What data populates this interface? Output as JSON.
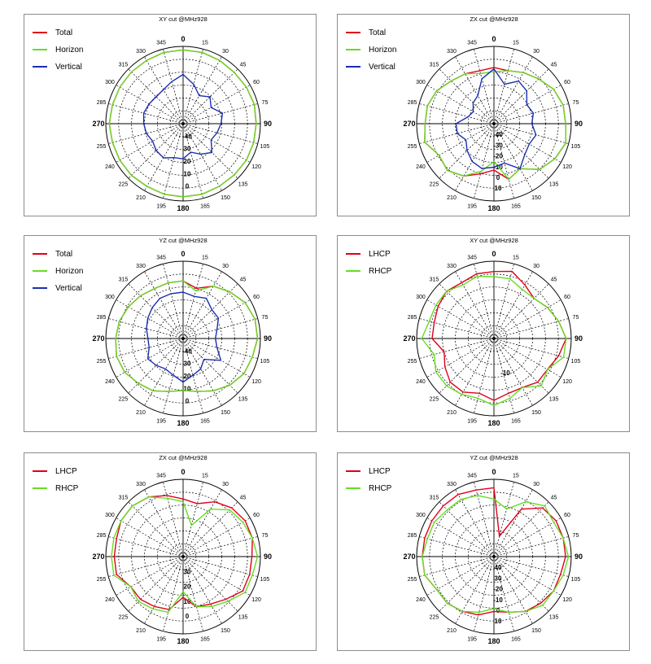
{
  "chart_data": [
    {
      "type": "polar-line",
      "title": "XY cut @MHz928",
      "angles": [
        0,
        15,
        30,
        45,
        60,
        75,
        90,
        105,
        120,
        135,
        150,
        165,
        180,
        195,
        210,
        225,
        240,
        255,
        270,
        285,
        300,
        315,
        330,
        345
      ],
      "radial_labels": [
        "0",
        "10",
        "20",
        "30",
        "-40"
      ],
      "radial_label_angle": 180,
      "rlim": [
        -45,
        10
      ],
      "legend": "top-left",
      "series": [
        {
          "name": "Total",
          "color": "#e0001b",
          "r": [
            7.5,
            7.5,
            7,
            6.5,
            7,
            7.5,
            7,
            7,
            7,
            6.5,
            6.5,
            7,
            7,
            7,
            6.5,
            7,
            7,
            7,
            7.5,
            7,
            7,
            7,
            7,
            7.5
          ]
        },
        {
          "name": "Horizon",
          "color": "#66dd22",
          "r": [
            7.5,
            7.5,
            7,
            6.5,
            7,
            7.5,
            7,
            7,
            7,
            6.5,
            6.5,
            7,
            7,
            7,
            6.5,
            7,
            7,
            7,
            7.5,
            7,
            7,
            7,
            7,
            7.5
          ]
        },
        {
          "name": "Vertical",
          "color": "#1a2fb0",
          "r": [
            -10,
            -16,
            -22,
            -18,
            -22,
            -16,
            -18,
            -20,
            -22,
            -16,
            -20,
            -24,
            -20,
            -20,
            -17,
            -18,
            -20,
            -18,
            -17,
            -16,
            -17,
            -18,
            -17,
            -14
          ]
        }
      ]
    },
    {
      "type": "polar-line",
      "title": "ZX cut @MHz928",
      "angles": [
        0,
        15,
        30,
        45,
        60,
        75,
        90,
        105,
        120,
        135,
        150,
        165,
        180,
        195,
        210,
        225,
        240,
        255,
        270,
        285,
        300,
        315,
        330,
        345
      ],
      "radial_labels": [
        "10",
        "0",
        "-10",
        "-20",
        "-30",
        "-40"
      ],
      "radial_label_angle": 180,
      "rlim": [
        -45,
        10
      ],
      "legend": "top-left",
      "series": [
        {
          "name": "Total",
          "color": "#e0001b",
          "r": [
            -5,
            -6,
            -3,
            0,
            4,
            6,
            6,
            8,
            5,
            1,
            -8,
            -4,
            -12,
            -8,
            -2,
            2,
            0,
            6,
            4,
            4,
            2,
            -2,
            -4,
            -6
          ]
        },
        {
          "name": "Horizon",
          "color": "#66dd22",
          "r": [
            -8,
            -6,
            -3,
            0,
            4,
            6,
            6,
            8,
            5,
            1,
            -8,
            -4,
            -18,
            -10,
            -2,
            2,
            0,
            6,
            4,
            4,
            2,
            -2,
            -4,
            -8
          ]
        },
        {
          "name": "Vertical",
          "color": "#1a2fb0",
          "r": [
            -6,
            -16,
            -10,
            -12,
            -18,
            -16,
            -18,
            -14,
            -16,
            -14,
            -8,
            -16,
            -14,
            -12,
            -14,
            -18,
            -22,
            -18,
            -18,
            -26,
            -28,
            -24,
            -22,
            -12
          ]
        }
      ]
    },
    {
      "type": "polar-line",
      "title": "YZ cut @MHz928",
      "angles": [
        0,
        15,
        30,
        45,
        60,
        75,
        90,
        105,
        120,
        135,
        150,
        165,
        180,
        195,
        210,
        225,
        240,
        255,
        270,
        285,
        300,
        315,
        330,
        345
      ],
      "radial_labels": [
        "0",
        "10",
        "20",
        "30",
        "-40"
      ],
      "radial_label_angle": 180,
      "rlim": [
        -45,
        10
      ],
      "legend": "top-left",
      "series": [
        {
          "name": "Total",
          "color": "#e0001b",
          "r": [
            -4,
            -8,
            -2,
            2,
            6,
            8,
            8,
            6,
            5,
            2,
            -2,
            -6,
            -8,
            -6,
            -2,
            0,
            3,
            4,
            3,
            2,
            0,
            -2,
            -4,
            -4
          ]
        },
        {
          "name": "Horizon",
          "color": "#66dd22",
          "r": [
            -4,
            -10,
            -2,
            2,
            6,
            8,
            8,
            6,
            5,
            2,
            -2,
            -6,
            -8,
            -6,
            -2,
            0,
            3,
            4,
            3,
            2,
            0,
            -2,
            -4,
            -4
          ]
        },
        {
          "name": "Vertical",
          "color": "#1a2fb0",
          "r": [
            -12,
            -14,
            -12,
            -16,
            -16,
            -20,
            -22,
            -20,
            -14,
            -24,
            -20,
            -18,
            -14,
            -18,
            -20,
            -18,
            -16,
            -20,
            -20,
            -18,
            -16,
            -14,
            -12,
            -12
          ]
        }
      ]
    },
    {
      "type": "polar-line",
      "title": "XY cut @MHz928",
      "angles": [
        0,
        15,
        30,
        45,
        60,
        75,
        90,
        105,
        120,
        135,
        150,
        165,
        180,
        195,
        210,
        225,
        240,
        255,
        270,
        285,
        300,
        315,
        330,
        345
      ],
      "radial_labels": [
        "-10"
      ],
      "radial_label_angle": 168,
      "rlim": [
        -20,
        10
      ],
      "legend": "top-left",
      "series": [
        {
          "name": "LHCP",
          "color": "#e0001b",
          "r": [
            6,
            7,
            4,
            2,
            4,
            6,
            8,
            6,
            4,
            4,
            2,
            2,
            4,
            2,
            4,
            4,
            2,
            0,
            4,
            4,
            5,
            6,
            5,
            6
          ]
        },
        {
          "name": "RHCP",
          "color": "#66dd22",
          "r": [
            4,
            4,
            2,
            2,
            4,
            6,
            8,
            8,
            4,
            6,
            2,
            4,
            6,
            4,
            5,
            6,
            6,
            4,
            8,
            6,
            6,
            6,
            4,
            5
          ]
        }
      ]
    },
    {
      "type": "polar-line",
      "title": "ZX cut @MHz928",
      "angles": [
        0,
        15,
        30,
        45,
        60,
        75,
        90,
        105,
        120,
        135,
        150,
        165,
        180,
        195,
        210,
        225,
        240,
        255,
        270,
        285,
        300,
        315,
        330,
        345
      ],
      "radial_labels": [
        "0",
        "10",
        "20",
        "30"
      ],
      "radial_label_angle": 180,
      "rlim": [
        -45,
        10
      ],
      "legend": "top-left",
      "series": [
        {
          "name": "LHCP",
          "color": "#e0001b",
          "r": [
            -4,
            -6,
            0,
            4,
            6,
            6,
            4,
            4,
            4,
            -2,
            -6,
            -8,
            -16,
            -6,
            -4,
            -2,
            -2,
            4,
            4,
            4,
            6,
            6,
            4,
            0
          ]
        },
        {
          "name": "RHCP",
          "color": "#66dd22",
          "r": [
            -6,
            -22,
            -6,
            2,
            4,
            6,
            8,
            6,
            6,
            0,
            -4,
            -8,
            -20,
            -4,
            -2,
            0,
            -2,
            6,
            6,
            6,
            6,
            6,
            4,
            -2
          ]
        }
      ]
    },
    {
      "type": "polar-line",
      "title": "YZ cut @MHz928",
      "angles": [
        0,
        15,
        30,
        45,
        60,
        75,
        90,
        105,
        120,
        135,
        150,
        165,
        180,
        195,
        210,
        225,
        240,
        255,
        270,
        285,
        300,
        315,
        330,
        345
      ],
      "radial_labels": [
        "10",
        "0",
        "-10",
        "-20",
        "30",
        "40"
      ],
      "radial_label_angle": 180,
      "rlim": [
        -45,
        10
      ],
      "legend": "top-left",
      "series": [
        {
          "name": "LHCP",
          "color": "#e0001b",
          "r": [
            4,
            -30,
            -6,
            4,
            6,
            6,
            6,
            4,
            4,
            2,
            0,
            -4,
            -6,
            -2,
            0,
            2,
            2,
            6,
            6,
            6,
            6,
            6,
            6,
            4
          ]
        },
        {
          "name": "RHCP",
          "color": "#66dd22",
          "r": [
            -4,
            -10,
            0,
            6,
            4,
            6,
            8,
            6,
            4,
            4,
            0,
            -4,
            -8,
            -4,
            0,
            2,
            2,
            6,
            6,
            4,
            4,
            2,
            2,
            0
          ]
        }
      ]
    }
  ]
}
